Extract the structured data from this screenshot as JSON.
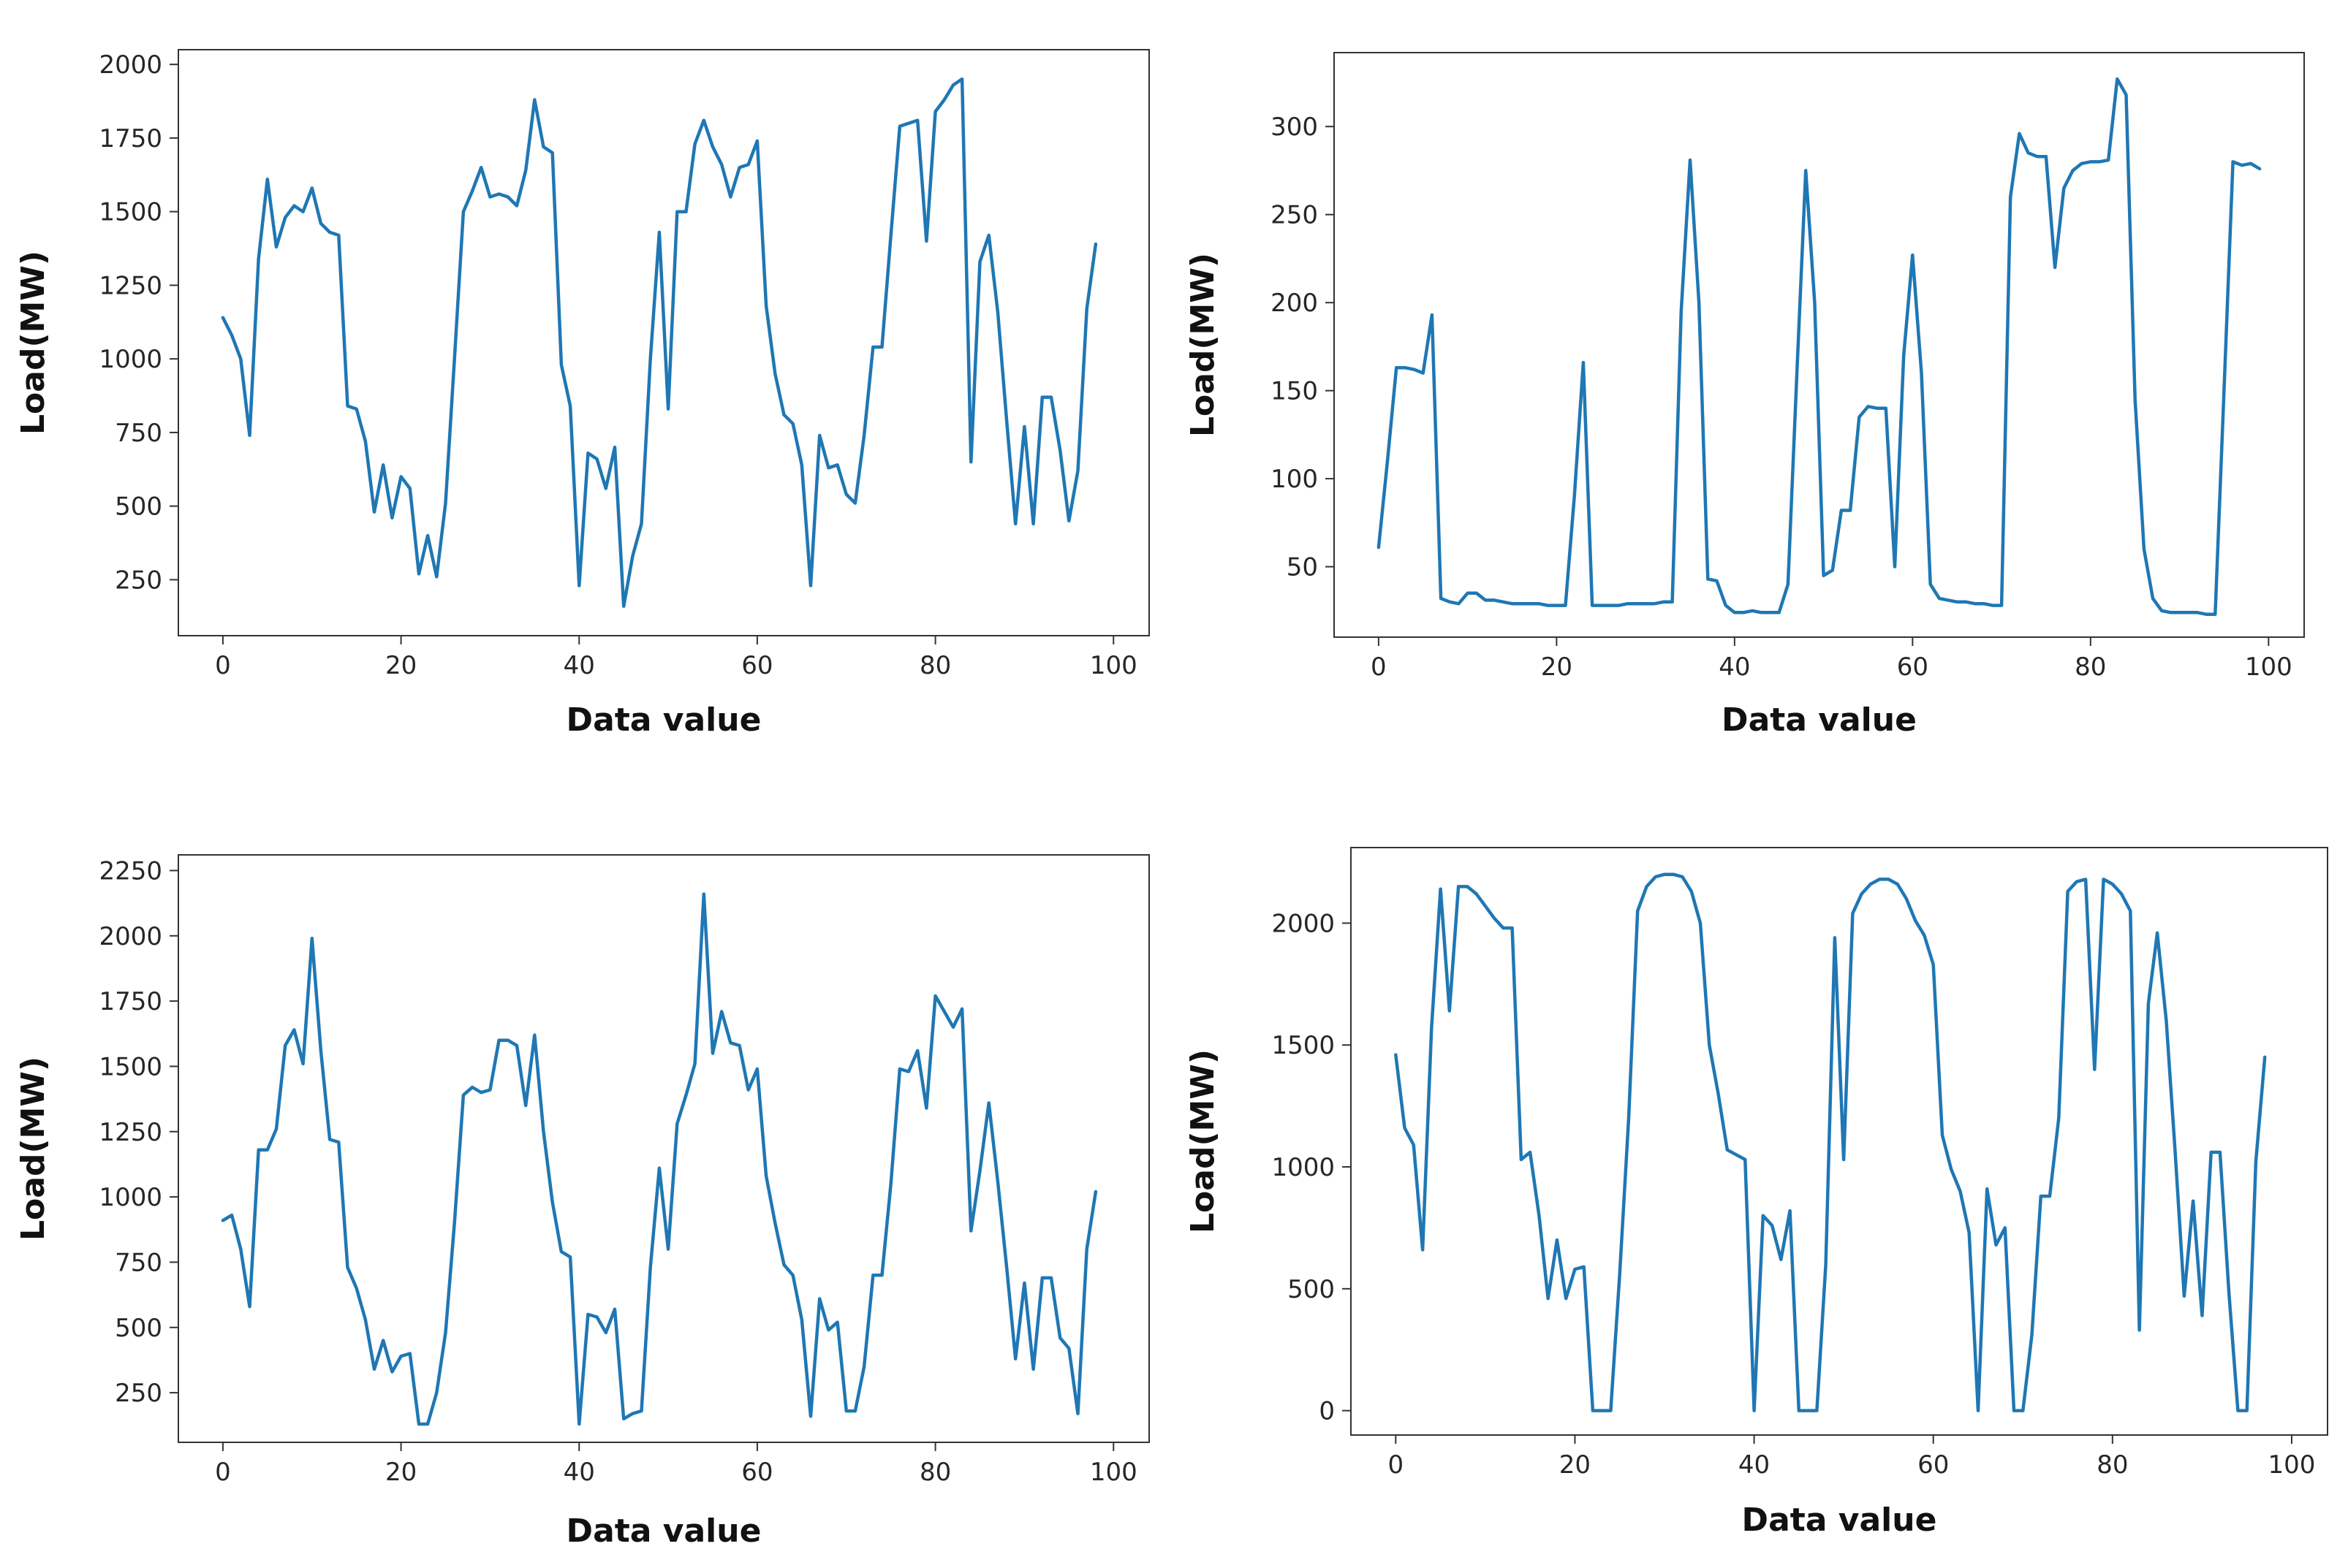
{
  "colors": {
    "line": "#1f77b4",
    "axis": "#333333",
    "text": "#262626",
    "background": "#ffffff"
  },
  "chart_data": [
    {
      "type": "line",
      "title": "",
      "xlabel": "Data value",
      "ylabel": "Load(MW)",
      "xlim": [
        -5,
        104
      ],
      "ylim": [
        60,
        2050
      ],
      "xticks": [
        0,
        20,
        40,
        60,
        80,
        100
      ],
      "yticks": [
        250,
        500,
        750,
        1000,
        1250,
        1500,
        1750,
        2000
      ],
      "grid": false,
      "series": [
        {
          "name": "load",
          "values": [
            1140,
            1080,
            1000,
            740,
            1340,
            1610,
            1380,
            1480,
            1520,
            1500,
            1580,
            1460,
            1430,
            1420,
            840,
            830,
            720,
            480,
            640,
            460,
            600,
            560,
            270,
            400,
            260,
            510,
            1000,
            1500,
            1570,
            1650,
            1550,
            1560,
            1550,
            1520,
            1640,
            1880,
            1720,
            1700,
            980,
            840,
            230,
            680,
            660,
            560,
            700,
            160,
            330,
            440,
            1000,
            1430,
            830,
            1500,
            1500,
            1730,
            1810,
            1720,
            1660,
            1550,
            1650,
            1660,
            1740,
            1180,
            950,
            810,
            780,
            640,
            230,
            740,
            630,
            640,
            540,
            510,
            740,
            1040,
            1040,
            1420,
            1790,
            1800,
            1810,
            1400,
            1840,
            1880,
            1930,
            1950,
            650,
            1330,
            1420,
            1160,
            790,
            440,
            770,
            440,
            870,
            870,
            690,
            450,
            620,
            1170,
            1390
          ]
        }
      ]
    },
    {
      "type": "line",
      "title": "",
      "xlabel": "Data value",
      "ylabel": "Load(MW)",
      "xlim": [
        -5,
        104
      ],
      "ylim": [
        10,
        342
      ],
      "xticks": [
        0,
        20,
        40,
        60,
        80,
        100
      ],
      "yticks": [
        50,
        100,
        150,
        200,
        250,
        300
      ],
      "grid": false,
      "series": [
        {
          "name": "load",
          "values": [
            61,
            110,
            163,
            163,
            162,
            160,
            193,
            32,
            30,
            29,
            35,
            35,
            31,
            31,
            30,
            29,
            29,
            29,
            29,
            28,
            28,
            28,
            90,
            166,
            28,
            28,
            28,
            28,
            29,
            29,
            29,
            29,
            30,
            30,
            195,
            281,
            200,
            43,
            42,
            28,
            24,
            24,
            25,
            24,
            24,
            24,
            40,
            160,
            275,
            200,
            45,
            48,
            82,
            82,
            135,
            141,
            140,
            140,
            50,
            170,
            227,
            160,
            40,
            32,
            31,
            30,
            30,
            29,
            29,
            28,
            28,
            260,
            296,
            285,
            283,
            283,
            220,
            265,
            275,
            279,
            280,
            280,
            281,
            327,
            318,
            145,
            60,
            32,
            25,
            24,
            24,
            24,
            24,
            23,
            23,
            150,
            280,
            278,
            279,
            276
          ]
        }
      ]
    },
    {
      "type": "line",
      "title": "",
      "xlabel": "Data value",
      "ylabel": "Load(MW)",
      "xlim": [
        -5,
        104
      ],
      "ylim": [
        60,
        2310
      ],
      "xticks": [
        0,
        20,
        40,
        60,
        80,
        100
      ],
      "yticks": [
        250,
        500,
        750,
        1000,
        1250,
        1500,
        1750,
        2000,
        2250
      ],
      "grid": false,
      "series": [
        {
          "name": "load",
          "values": [
            910,
            930,
            800,
            580,
            1180,
            1180,
            1260,
            1580,
            1640,
            1510,
            1990,
            1560,
            1220,
            1210,
            730,
            650,
            530,
            340,
            450,
            330,
            390,
            400,
            130,
            130,
            250,
            480,
            900,
            1390,
            1420,
            1400,
            1410,
            1600,
            1600,
            1580,
            1350,
            1620,
            1250,
            980,
            790,
            770,
            130,
            550,
            540,
            480,
            570,
            150,
            170,
            180,
            730,
            1110,
            800,
            1280,
            1390,
            1510,
            2160,
            1550,
            1710,
            1590,
            1580,
            1410,
            1490,
            1080,
            900,
            740,
            700,
            530,
            160,
            610,
            490,
            520,
            180,
            180,
            350,
            700,
            700,
            1050,
            1490,
            1480,
            1560,
            1340,
            1770,
            1710,
            1650,
            1720,
            870,
            1100,
            1360,
            1060,
            730,
            380,
            670,
            340,
            690,
            690,
            460,
            420,
            170,
            800,
            1020
          ]
        }
      ]
    },
    {
      "type": "line",
      "title": "",
      "xlabel": "Data value",
      "ylabel": "Load(MW)",
      "xlim": [
        -5,
        104
      ],
      "ylim": [
        -100,
        2310
      ],
      "xticks": [
        0,
        20,
        40,
        60,
        80,
        100
      ],
      "yticks": [
        0,
        500,
        1000,
        1500,
        2000
      ],
      "grid": false,
      "series": [
        {
          "name": "load",
          "values": [
            1460,
            1160,
            1090,
            660,
            1570,
            2140,
            1640,
            2150,
            2150,
            2120,
            2070,
            2020,
            1980,
            1980,
            1030,
            1060,
            800,
            460,
            700,
            460,
            580,
            590,
            0,
            0,
            0,
            560,
            1200,
            2050,
            2150,
            2190,
            2200,
            2200,
            2190,
            2130,
            2000,
            1500,
            1300,
            1070,
            1050,
            1030,
            0,
            800,
            760,
            620,
            820,
            0,
            0,
            0,
            600,
            1940,
            1030,
            2040,
            2120,
            2160,
            2180,
            2180,
            2160,
            2100,
            2010,
            1950,
            1830,
            1130,
            990,
            900,
            730,
            0,
            910,
            680,
            750,
            0,
            0,
            310,
            880,
            880,
            1200,
            2130,
            2170,
            2180,
            1400,
            2180,
            2160,
            2120,
            2050,
            330,
            1670,
            1960,
            1600,
            1060,
            470,
            860,
            390,
            1060,
            1060,
            480,
            0,
            0,
            1020,
            1450
          ]
        }
      ]
    }
  ]
}
